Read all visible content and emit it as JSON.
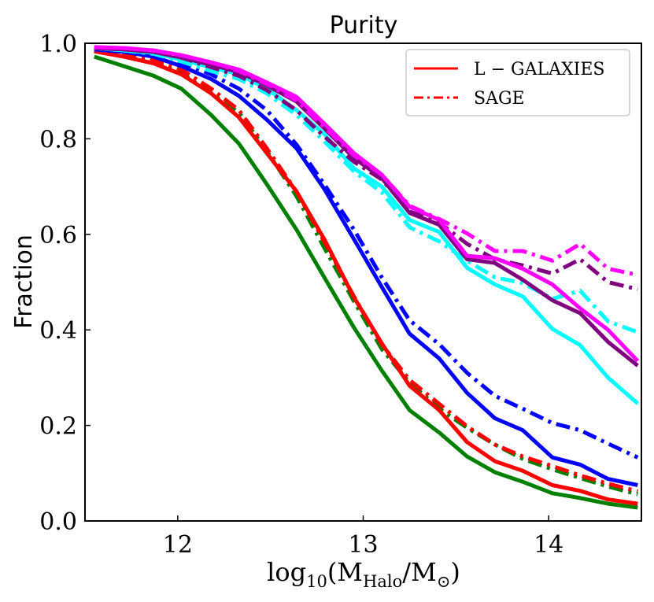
{
  "chart_data": {
    "type": "line",
    "title": "Purity",
    "xlabel": "log10(MHalo/M⊙)",
    "xlabel_parts": {
      "log": "log",
      "sub10": "10",
      "open": "(M",
      "halo": "Halo",
      "slash": "/M",
      "sun": "⊙",
      "close": ")"
    },
    "ylabel": "Fraction",
    "xlim": [
      11.5,
      14.5
    ],
    "ylim": [
      0.0,
      1.0
    ],
    "xticks": [
      12,
      13,
      14
    ],
    "xtick_labels": [
      "12",
      "13",
      "14"
    ],
    "yticks": [
      0.0,
      0.2,
      0.4,
      0.6,
      0.8,
      1.0
    ],
    "ytick_labels": [
      "0.0",
      "0.2",
      "0.4",
      "0.6",
      "0.8",
      "1.0"
    ],
    "grid": false,
    "legend": {
      "position": "top-right",
      "entries": [
        {
          "label": "L − GALAXIES",
          "style": "solid",
          "color": "#ff0000"
        },
        {
          "label": "SAGE",
          "style": "dashdot",
          "color": "#ff0000"
        }
      ]
    },
    "x": [
      11.55,
      11.71,
      11.87,
      12.02,
      12.18,
      12.33,
      12.48,
      12.64,
      12.79,
      12.95,
      13.1,
      13.25,
      13.41,
      13.56,
      13.71,
      13.86,
      14.02,
      14.17,
      14.32,
      14.48
    ],
    "series": [
      {
        "name": "green-solid",
        "color": "#008000",
        "style": "solid",
        "values": [
          0.972,
          0.952,
          0.932,
          0.905,
          0.85,
          0.79,
          0.705,
          0.61,
          0.51,
          0.405,
          0.315,
          0.232,
          0.185,
          0.135,
          0.102,
          0.082,
          0.058,
          0.048,
          0.036,
          0.028
        ]
      },
      {
        "name": "green-dashdot",
        "color": "#008000",
        "style": "dashdot",
        "values": [
          0.984,
          0.975,
          0.96,
          0.938,
          0.895,
          0.855,
          0.775,
          0.68,
          0.572,
          0.46,
          0.36,
          0.29,
          0.235,
          0.195,
          0.16,
          0.13,
          0.108,
          0.09,
          0.072,
          0.056
        ]
      },
      {
        "name": "red-solid",
        "color": "#ff0000",
        "style": "solid",
        "values": [
          0.983,
          0.972,
          0.958,
          0.935,
          0.895,
          0.845,
          0.77,
          0.69,
          0.59,
          0.468,
          0.372,
          0.283,
          0.232,
          0.165,
          0.125,
          0.105,
          0.075,
          0.063,
          0.045,
          0.036
        ]
      },
      {
        "name": "red-dashdot",
        "color": "#ff0000",
        "style": "dashdot",
        "values": [
          0.987,
          0.978,
          0.965,
          0.945,
          0.905,
          0.86,
          0.78,
          0.69,
          0.585,
          0.47,
          0.37,
          0.295,
          0.245,
          0.198,
          0.16,
          0.135,
          0.115,
          0.095,
          0.078,
          0.062
        ]
      },
      {
        "name": "blue-solid",
        "color": "#0000ff",
        "style": "solid",
        "values": [
          0.987,
          0.982,
          0.972,
          0.952,
          0.925,
          0.89,
          0.84,
          0.78,
          0.695,
          0.59,
          0.49,
          0.392,
          0.34,
          0.268,
          0.215,
          0.19,
          0.133,
          0.118,
          0.088,
          0.075
        ]
      },
      {
        "name": "blue-dashdot",
        "color": "#0000ff",
        "style": "dashdot",
        "values": [
          0.99,
          0.985,
          0.977,
          0.96,
          0.935,
          0.905,
          0.86,
          0.788,
          0.705,
          0.61,
          0.51,
          0.42,
          0.37,
          0.31,
          0.262,
          0.235,
          0.205,
          0.19,
          0.162,
          0.133
        ]
      },
      {
        "name": "cyan-solid",
        "color": "#00ffff",
        "style": "solid",
        "values": [
          0.99,
          0.985,
          0.98,
          0.965,
          0.95,
          0.935,
          0.905,
          0.86,
          0.81,
          0.738,
          0.7,
          0.63,
          0.605,
          0.53,
          0.495,
          0.47,
          0.402,
          0.368,
          0.3,
          0.246
        ]
      },
      {
        "name": "cyan-dashdot",
        "color": "#00ffff",
        "style": "dashdot",
        "values": [
          0.99,
          0.985,
          0.978,
          0.962,
          0.942,
          0.925,
          0.895,
          0.85,
          0.795,
          0.732,
          0.688,
          0.615,
          0.585,
          0.545,
          0.51,
          0.498,
          0.465,
          0.482,
          0.418,
          0.395
        ]
      },
      {
        "name": "purple-solid",
        "color": "#800080",
        "style": "solid",
        "values": [
          0.99,
          0.987,
          0.982,
          0.97,
          0.955,
          0.94,
          0.912,
          0.878,
          0.822,
          0.76,
          0.718,
          0.645,
          0.62,
          0.548,
          0.54,
          0.505,
          0.462,
          0.435,
          0.375,
          0.325
        ]
      },
      {
        "name": "purple-dashdot",
        "color": "#800080",
        "style": "dashdot",
        "values": [
          0.99,
          0.987,
          0.982,
          0.97,
          0.95,
          0.932,
          0.902,
          0.86,
          0.805,
          0.752,
          0.715,
          0.648,
          0.625,
          0.58,
          0.548,
          0.535,
          0.518,
          0.548,
          0.5,
          0.485
        ]
      },
      {
        "name": "magenta-solid",
        "color": "#ff00ff",
        "style": "solid",
        "values": [
          0.992,
          0.99,
          0.985,
          0.975,
          0.96,
          0.945,
          0.918,
          0.888,
          0.832,
          0.77,
          0.725,
          0.658,
          0.63,
          0.555,
          0.55,
          0.528,
          0.495,
          0.445,
          0.4,
          0.335
        ]
      },
      {
        "name": "magenta-dashdot",
        "color": "#ff00ff",
        "style": "dashdot",
        "values": [
          0.992,
          0.99,
          0.985,
          0.975,
          0.96,
          0.942,
          0.915,
          0.88,
          0.825,
          0.765,
          0.725,
          0.66,
          0.632,
          0.602,
          0.565,
          0.565,
          0.545,
          0.58,
          0.528,
          0.515
        ]
      }
    ]
  }
}
